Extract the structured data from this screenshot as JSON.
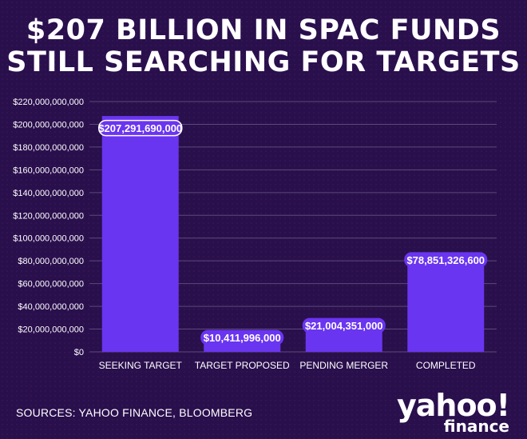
{
  "title_lines": [
    "$207 BILLION IN SPAC FUNDS",
    "STILL SEARCHING FOR TARGETS"
  ],
  "source": "SOURCES: YAHOO FINANCE, BLOOMBERG",
  "logo": {
    "line1": "yahoo!",
    "line2": "finance"
  },
  "colors": {
    "background": "#2a0f4d",
    "bar": "#6a35f0",
    "grid": "#5b4a78",
    "label_bg": "#6a35f0",
    "text": "#ffffff"
  },
  "chart_data": {
    "type": "bar",
    "categories": [
      "SEEKING TARGET",
      "TARGET PROPOSED",
      "PENDING MERGER",
      "COMPLETED"
    ],
    "values": [
      207291690000,
      10411996000,
      21004351000,
      78851326600
    ],
    "data_labels": [
      "$207,291,690,000",
      "$10,411,996,000",
      "$21,004,351,000",
      "$78,851,326,600"
    ],
    "ylim": [
      0,
      220000000000
    ],
    "y_ticks": [
      0,
      20000000000,
      40000000000,
      60000000000,
      80000000000,
      100000000000,
      120000000000,
      140000000000,
      160000000000,
      180000000000,
      200000000000,
      220000000000
    ],
    "y_tick_labels": [
      "$0",
      "$20,000,000,000",
      "$40,000,000,000",
      "$60,000,000,000",
      "$80,000,000,000",
      "$100,000,000,000",
      "$120,000,000,000",
      "$140,000,000,000",
      "$160,000,000,000",
      "$180,000,000,000",
      "$200,000,000,000",
      "$220,000,000,000"
    ],
    "grid": true,
    "title": "$207 BILLION IN SPAC FUNDS STILL SEARCHING FOR TARGETS",
    "xlabel": "",
    "ylabel": ""
  }
}
